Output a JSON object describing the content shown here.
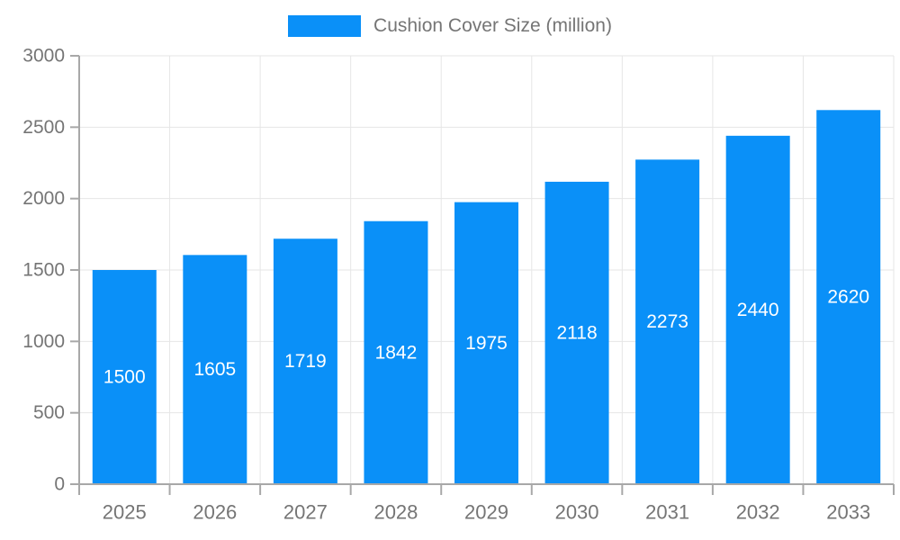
{
  "chart_data": {
    "type": "bar",
    "title": "",
    "legend": "Cushion Cover Size (million)",
    "legend_position": "top",
    "categories": [
      "2025",
      "2026",
      "2027",
      "2028",
      "2029",
      "2030",
      "2031",
      "2032",
      "2033"
    ],
    "series": [
      {
        "name": "Cushion Cover Size (million)",
        "values": [
          1500,
          1605,
          1719,
          1842,
          1975,
          2118,
          2273,
          2440,
          2620
        ]
      }
    ],
    "xlabel": "",
    "ylabel": "",
    "ylim": [
      0,
      3000
    ],
    "yticks": [
      0,
      500,
      1000,
      1500,
      2000,
      2500,
      3000
    ],
    "grid": true,
    "bar_labels_inside": true,
    "colors": {
      "bar": "#0a90f8",
      "bar_value_label": "#ffffff",
      "axis_text": "#757575",
      "grid_line": "#e6e6e6",
      "axis_line": "#a8a8a8",
      "background": "#ffffff"
    }
  }
}
